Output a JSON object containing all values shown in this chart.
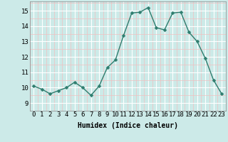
{
  "x": [
    0,
    1,
    2,
    3,
    4,
    5,
    6,
    7,
    8,
    9,
    10,
    11,
    12,
    13,
    14,
    15,
    16,
    17,
    18,
    19,
    20,
    21,
    22,
    23
  ],
  "y": [
    10.1,
    9.9,
    9.6,
    9.8,
    10.0,
    10.35,
    10.0,
    9.5,
    10.1,
    11.3,
    11.8,
    13.4,
    14.85,
    14.9,
    15.2,
    13.9,
    13.75,
    14.85,
    14.9,
    13.6,
    13.0,
    11.9,
    10.5,
    9.6
  ],
  "line_color": "#2e7d6e",
  "marker": "D",
  "marker_size": 2.5,
  "xlabel": "Humidex (Indice chaleur)",
  "xlim": [
    -0.5,
    23.5
  ],
  "ylim": [
    9.0,
    15.6
  ],
  "yticks": [
    9,
    10,
    11,
    12,
    13,
    14,
    15
  ],
  "xticks": [
    0,
    1,
    2,
    3,
    4,
    5,
    6,
    7,
    8,
    9,
    10,
    11,
    12,
    13,
    14,
    15,
    16,
    17,
    18,
    19,
    20,
    21,
    22,
    23
  ],
  "bg_color": "#cceae8",
  "grid_color": "#ffffff",
  "grid_minor_color": "#f0c0c0",
  "xlabel_fontsize": 7,
  "tick_fontsize": 6.5,
  "linewidth": 1.0
}
